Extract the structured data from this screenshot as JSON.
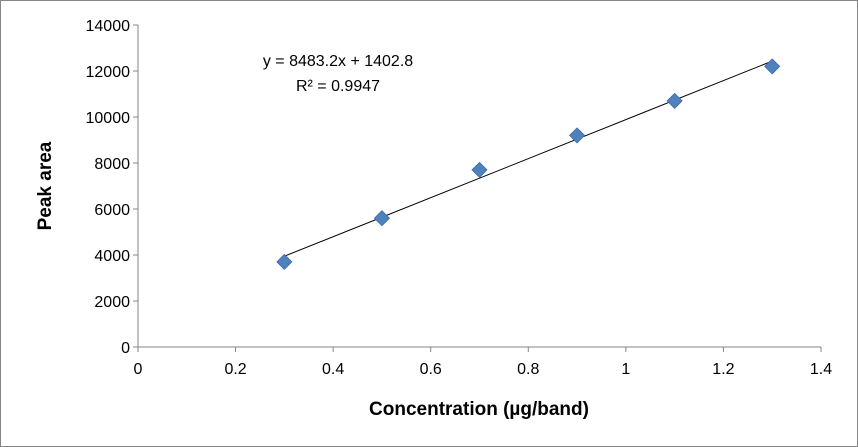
{
  "chart_data": {
    "type": "scatter",
    "title": "",
    "xlabel": "Concentration (µg/band)",
    "ylabel": "Peak area",
    "xlim": [
      0,
      1.4
    ],
    "ylim": [
      0,
      14000
    ],
    "x_ticks": [
      0,
      0.2,
      0.4,
      0.6,
      0.8,
      1,
      1.2,
      1.4
    ],
    "x_tick_labels": [
      "0",
      "0.2",
      "0.4",
      "0.6",
      "0.8",
      "1",
      "1.2",
      "1.4"
    ],
    "y_ticks": [
      0,
      2000,
      4000,
      6000,
      8000,
      10000,
      12000,
      14000
    ],
    "y_tick_labels": [
      "0",
      "2000",
      "4000",
      "6000",
      "8000",
      "10000",
      "12000",
      "14000"
    ],
    "grid": false,
    "legend": "none",
    "marker": "diamond",
    "marker_color": "#4F81BD",
    "series": [
      {
        "x": [
          0.3,
          0.5,
          0.7,
          0.9,
          1.1,
          1.3
        ],
        "y": [
          3700,
          5600,
          7700,
          9200,
          10700,
          12200
        ]
      }
    ],
    "trendline": {
      "type": "linear",
      "slope": 8483.2,
      "intercept": 1402.8,
      "x_range": [
        0.3,
        1.3
      ],
      "equation": "y = 8483.2x + 1402.8",
      "r_squared": "R² = 0.9947"
    }
  }
}
